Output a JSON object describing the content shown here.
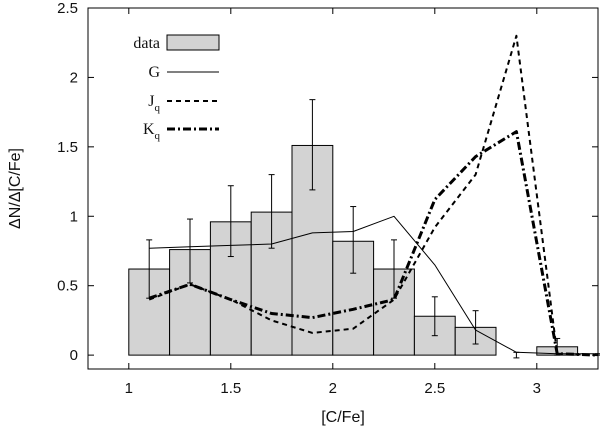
{
  "chart_data": {
    "type": "bar",
    "title": "",
    "xlabel": "[C/Fe]",
    "ylabel": "ΔN/Δ[C/Fe]",
    "xlim": [
      0.8,
      3.3
    ],
    "ylim": [
      -0.1,
      2.5
    ],
    "x_ticks": [
      {
        "value": 1,
        "label": "1"
      },
      {
        "value": 1.5,
        "label": "1.5"
      },
      {
        "value": 2,
        "label": "2"
      },
      {
        "value": 2.5,
        "label": "2.5"
      },
      {
        "value": 3,
        "label": "3"
      }
    ],
    "y_ticks": [
      {
        "value": 0,
        "label": "0"
      },
      {
        "value": 0.5,
        "label": "0.5"
      },
      {
        "value": 1,
        "label": "1"
      },
      {
        "value": 1.5,
        "label": "1.5"
      },
      {
        "value": 2,
        "label": "2"
      },
      {
        "value": 2.5,
        "label": "2.5"
      }
    ],
    "legend": {
      "placement": "top-left",
      "entries": [
        {
          "key": "data",
          "label": "data"
        },
        {
          "key": "G",
          "label": "G"
        },
        {
          "key": "Jq",
          "label_main": "J",
          "label_sub": "q"
        },
        {
          "key": "Kq",
          "label_main": "K",
          "label_sub": "q"
        }
      ]
    },
    "histogram": {
      "name": "data",
      "fill": "#d3d3d3",
      "stroke": "#000000",
      "bins": [
        {
          "x0": 1.0,
          "x1": 1.2,
          "value": 0.62,
          "err_low": 0.41,
          "err_high": 0.83
        },
        {
          "x0": 1.2,
          "x1": 1.4,
          "value": 0.76,
          "err_low": 0.52,
          "err_high": 0.98
        },
        {
          "x0": 1.4,
          "x1": 1.6,
          "value": 0.96,
          "err_low": 0.71,
          "err_high": 1.22
        },
        {
          "x0": 1.6,
          "x1": 1.8,
          "value": 1.03,
          "err_low": 0.77,
          "err_high": 1.3
        },
        {
          "x0": 1.8,
          "x1": 2.0,
          "value": 1.51,
          "err_low": 1.19,
          "err_high": 1.84
        },
        {
          "x0": 2.0,
          "x1": 2.2,
          "value": 0.82,
          "err_low": 0.59,
          "err_high": 1.07
        },
        {
          "x0": 2.2,
          "x1": 2.4,
          "value": 0.62,
          "err_low": 0.41,
          "err_high": 0.83
        },
        {
          "x0": 2.4,
          "x1": 2.6,
          "value": 0.28,
          "err_low": 0.14,
          "err_high": 0.42
        },
        {
          "x0": 2.6,
          "x1": 2.8,
          "value": 0.2,
          "err_low": 0.08,
          "err_high": 0.32
        },
        {
          "x0": 2.8,
          "x1": 3.0,
          "value": 0.0,
          "err_low": -0.02,
          "err_high": 0.02
        },
        {
          "x0": 3.0,
          "x1": 3.2,
          "value": 0.06,
          "err_low": 0.0,
          "err_high": 0.12
        },
        {
          "x0": 3.2,
          "x1": 3.4,
          "value": 0.0,
          "err_low": 0.0,
          "err_high": 0.01
        }
      ]
    },
    "series": [
      {
        "name": "G",
        "dash": "solid",
        "x": [
          1.1,
          1.3,
          1.5,
          1.7,
          1.9,
          2.1,
          2.3,
          2.5,
          2.7,
          2.9,
          3.1,
          3.3
        ],
        "y": [
          0.77,
          0.78,
          0.79,
          0.8,
          0.88,
          0.89,
          1.0,
          0.65,
          0.18,
          0.02,
          0.01,
          0.01
        ]
      },
      {
        "name": "Jq",
        "dash": "dashed",
        "x": [
          1.1,
          1.3,
          1.5,
          1.7,
          1.9,
          2.1,
          2.3,
          2.5,
          2.7,
          2.9,
          3.1,
          3.3
        ],
        "y": [
          0.4,
          0.51,
          0.4,
          0.25,
          0.16,
          0.19,
          0.4,
          0.92,
          1.3,
          2.3,
          0.01,
          0.0
        ]
      },
      {
        "name": "Kq",
        "dash": "dashdot",
        "x": [
          1.1,
          1.3,
          1.5,
          1.7,
          1.9,
          2.1,
          2.3,
          2.5,
          2.7,
          2.9,
          3.1,
          3.3
        ],
        "y": [
          0.41,
          0.51,
          0.4,
          0.3,
          0.27,
          0.33,
          0.4,
          1.12,
          1.43,
          1.61,
          0.01,
          0.0
        ]
      }
    ]
  }
}
